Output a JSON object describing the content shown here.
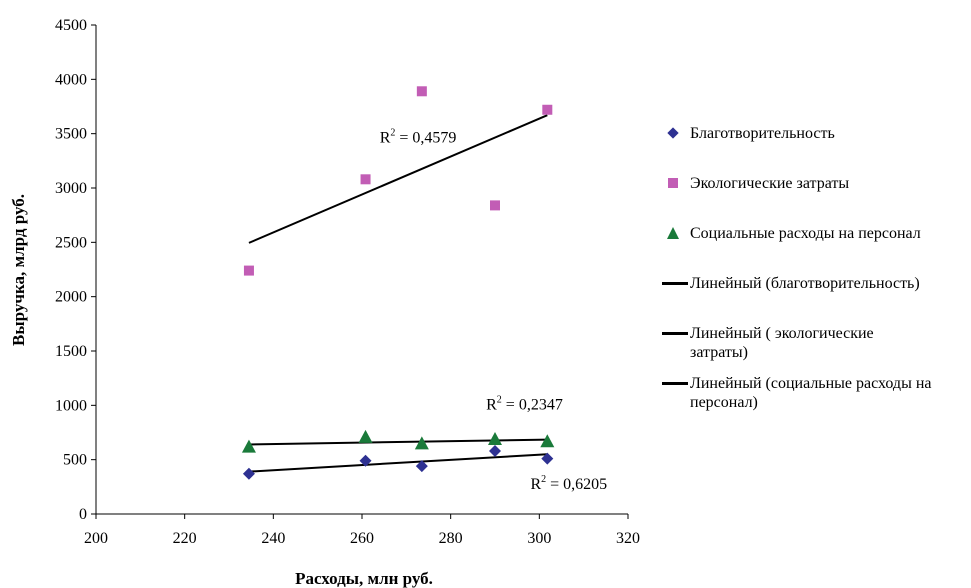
{
  "chart_data": {
    "type": "scatter",
    "xlabel": "Расходы, млн руб.",
    "ylabel": "Выручка, млрд руб.",
    "xlim": [
      200,
      320
    ],
    "ylim": [
      0,
      4500
    ],
    "xticks": [
      "200",
      "220",
      "240",
      "260",
      "280",
      "300",
      "320"
    ],
    "yticks": [
      "0",
      "500",
      "1000",
      "1500",
      "2000",
      "2500",
      "3000",
      "3500",
      "4000",
      "4500"
    ],
    "grid": false,
    "legend_position": "right",
    "series": [
      {
        "name": "Благотворительность",
        "marker": "diamond",
        "color": "#2e3192",
        "points": [
          [
            234.5,
            370
          ],
          [
            260.8,
            490
          ],
          [
            273.5,
            440
          ],
          [
            290,
            580
          ],
          [
            301.8,
            510
          ]
        ]
      },
      {
        "name": "Экологические затраты",
        "marker": "square",
        "color": "#c25db5",
        "points": [
          [
            234.5,
            2240
          ],
          [
            260.8,
            3080
          ],
          [
            273.5,
            3890
          ],
          [
            290,
            2840
          ],
          [
            301.8,
            3720
          ]
        ]
      },
      {
        "name": "Социальные расходы на персонал",
        "marker": "triangle",
        "color": "#1a7a3a",
        "points": [
          [
            234.5,
            620
          ],
          [
            260.8,
            710
          ],
          [
            273.5,
            650
          ],
          [
            290,
            690
          ],
          [
            301.8,
            670
          ]
        ]
      }
    ],
    "trendlines": [
      {
        "name": "Линейный (благотворительность)",
        "from": [
          234.5,
          390
        ],
        "to": [
          301.8,
          550
        ],
        "r2_base": "R",
        "r2_exp": "2",
        "r2_text": " = 0,6205",
        "r2_at": [
          298,
          230
        ]
      },
      {
        "name": "Линейный ( экологические затраты)",
        "from": [
          234.5,
          2495
        ],
        "to": [
          301.8,
          3670
        ],
        "r2_base": "R",
        "r2_exp": "2",
        "r2_text": " = 0,4579",
        "r2_at": [
          264,
          3420
        ]
      },
      {
        "name": "Линейный  (социальные расходы на персонал)",
        "from": [
          234.5,
          640
        ],
        "to": [
          301.8,
          685
        ],
        "r2_base": "R",
        "r2_exp": "2",
        "r2_text": " = 0,2347",
        "r2_at": [
          288,
          960
        ]
      }
    ]
  },
  "legend": {
    "items": [
      {
        "label": "Благотворительность",
        "icon": "diamond-marker"
      },
      {
        "label": "Экологические затраты",
        "icon": "square-marker"
      },
      {
        "label": "Социальные расходы на персонал",
        "icon": "triangle-marker"
      },
      {
        "label": "Линейный (благотворительность)",
        "icon": "line-marker"
      },
      {
        "label": "Линейный ( экологические затраты)",
        "icon": "line-marker"
      },
      {
        "label": "Линейный  (социальные расходы на персонал)",
        "icon": "line-marker"
      }
    ]
  }
}
